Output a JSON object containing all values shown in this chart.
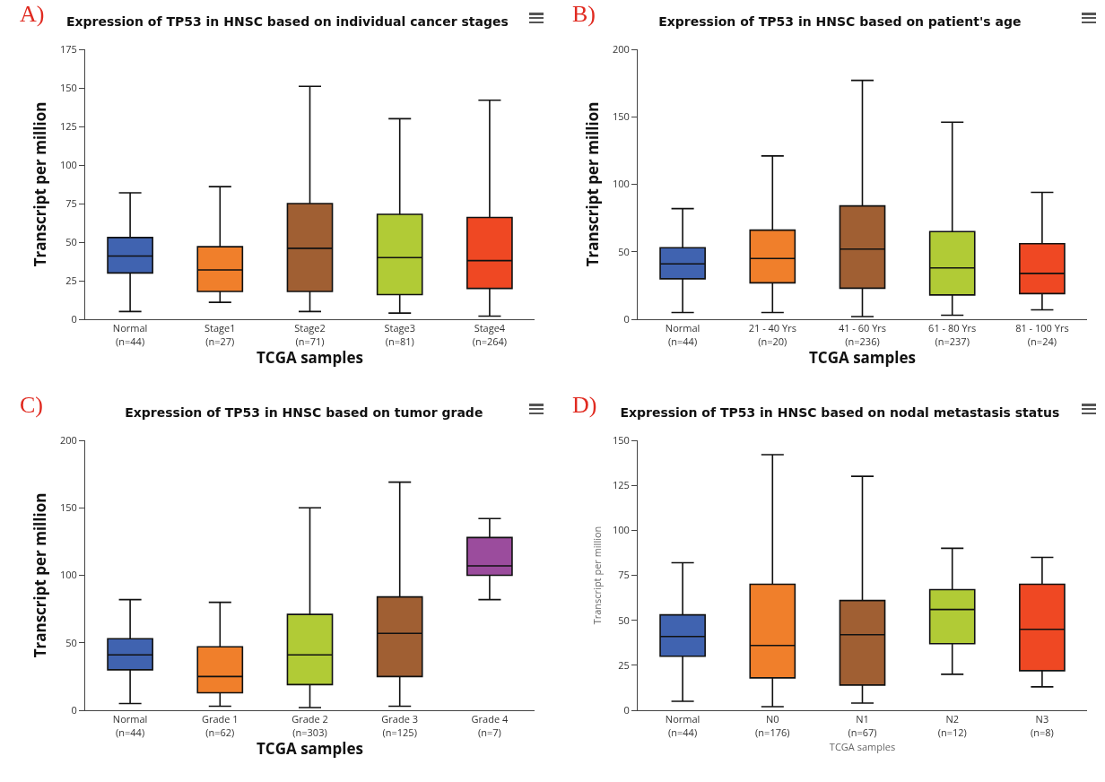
{
  "chart_data": [
    {
      "type": "box",
      "title": "Expression of TP53 in HNSC based on individual cancer stages",
      "xlabel": "TCGA samples",
      "ylabel": "Transcript per million",
      "annotations": [
        "A)"
      ],
      "categories": [
        "Normal\n(n=44)",
        "Stage1\n(n=27)",
        "Stage2\n(n=71)",
        "Stage3\n(n=81)",
        "Stage4\n(n=264)"
      ],
      "colors": [
        "#4063b0",
        "#f07f2b",
        "#a05f33",
        "#b1cb36",
        "#ef4823"
      ],
      "boxes": [
        {
          "low": 5,
          "q1": 30,
          "median": 41,
          "q3": 53,
          "high": 82
        },
        {
          "low": 11,
          "q1": 18,
          "median": 32,
          "q3": 47,
          "high": 86
        },
        {
          "low": 5,
          "q1": 18,
          "median": 46,
          "q3": 75,
          "high": 151
        },
        {
          "low": 4,
          "q1": 16,
          "median": 40,
          "q3": 68,
          "high": 130
        },
        {
          "low": 2,
          "q1": 20,
          "median": 38,
          "q3": 66,
          "high": 142
        }
      ],
      "ylim": [
        0,
        175
      ],
      "yticks": [
        0,
        25,
        50,
        75,
        100,
        125,
        150,
        175
      ]
    },
    {
      "type": "box",
      "title": "Expression of TP53 in HNSC based on patient's age",
      "xlabel": "TCGA samples",
      "ylabel": "Transcript per million",
      "annotations": [
        "B)"
      ],
      "categories": [
        "Normal\n(n=44)",
        "21 - 40 Yrs\n(n=20)",
        "41 - 60 Yrs\n(n=236)",
        "61 - 80 Yrs\n(n=237)",
        "81 - 100 Yrs\n(n=24)"
      ],
      "colors": [
        "#4063b0",
        "#f07f2b",
        "#a05f33",
        "#b1cb36",
        "#ef4823"
      ],
      "boxes": [
        {
          "low": 5,
          "q1": 30,
          "median": 41,
          "q3": 53,
          "high": 82
        },
        {
          "low": 5,
          "q1": 27,
          "median": 45,
          "q3": 66,
          "high": 121
        },
        {
          "low": 2,
          "q1": 23,
          "median": 52,
          "q3": 84,
          "high": 177
        },
        {
          "low": 3,
          "q1": 18,
          "median": 38,
          "q3": 65,
          "high": 146
        },
        {
          "low": 7,
          "q1": 19,
          "median": 34,
          "q3": 56,
          "high": 94
        }
      ],
      "ylim": [
        0,
        200
      ],
      "yticks": [
        0,
        50,
        100,
        150,
        200
      ]
    },
    {
      "type": "box",
      "title": "Expression of TP53 in HNSC based on tumor grade",
      "xlabel": "TCGA samples",
      "ylabel": "Transcript per million",
      "annotations": [
        "C)"
      ],
      "categories": [
        "Normal\n(n=44)",
        "Grade 1\n(n=62)",
        "Grade 2\n(n=303)",
        "Grade 3\n(n=125)",
        "Grade 4\n(n=7)"
      ],
      "colors": [
        "#4063b0",
        "#f07f2b",
        "#b1cb36",
        "#a05f33",
        "#9b4c9d"
      ],
      "boxes": [
        {
          "low": 5,
          "q1": 30,
          "median": 41,
          "q3": 53,
          "high": 82
        },
        {
          "low": 3,
          "q1": 13,
          "median": 25,
          "q3": 47,
          "high": 80
        },
        {
          "low": 2,
          "q1": 19,
          "median": 41,
          "q3": 71,
          "high": 150
        },
        {
          "low": 3,
          "q1": 25,
          "median": 57,
          "q3": 84,
          "high": 169
        },
        {
          "low": 82,
          "q1": 100,
          "median": 107,
          "q3": 128,
          "high": 142
        }
      ],
      "ylim": [
        0,
        200
      ],
      "yticks": [
        0,
        50,
        100,
        150,
        200
      ]
    },
    {
      "type": "box",
      "title": "Expression of TP53 in HNSC based on nodal metastasis status",
      "xlabel": "TCGA samples",
      "ylabel": "Transcript per million",
      "annotations": [
        "D)"
      ],
      "categories": [
        "Normal\n(n=44)",
        "N0\n(n=176)",
        "N1\n(n=67)",
        "N2\n(n=12)",
        "N3\n(n=8)"
      ],
      "colors": [
        "#4063b0",
        "#f07f2b",
        "#a05f33",
        "#b1cb36",
        "#ef4823"
      ],
      "boxes": [
        {
          "low": 5,
          "q1": 30,
          "median": 41,
          "q3": 53,
          "high": 82
        },
        {
          "low": 2,
          "q1": 18,
          "median": 36,
          "q3": 70,
          "high": 142
        },
        {
          "low": 4,
          "q1": 14,
          "median": 42,
          "q3": 61,
          "high": 130
        },
        {
          "low": 20,
          "q1": 37,
          "median": 56,
          "q3": 67,
          "high": 90
        },
        {
          "low": 13,
          "q1": 22,
          "median": 45,
          "q3": 70,
          "high": 85
        }
      ],
      "ylim": [
        0,
        150
      ],
      "yticks": [
        0,
        25,
        50,
        75,
        100,
        125,
        150
      ]
    }
  ]
}
